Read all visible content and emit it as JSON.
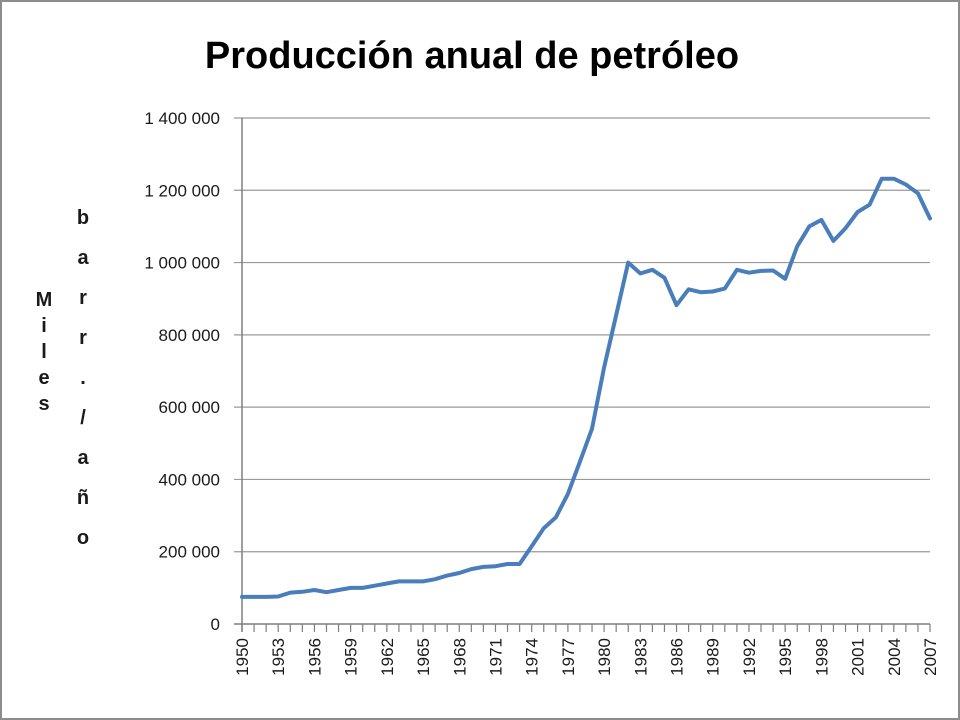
{
  "chart_data": {
    "type": "line",
    "title": "Producción anual de petróleo",
    "ylabel_lines": [
      "Miles",
      "barr./año"
    ],
    "ylim": [
      0,
      1400000
    ],
    "y_ticks": [
      0,
      200000,
      400000,
      600000,
      800000,
      1000000,
      1200000,
      1400000
    ],
    "y_tick_labels": [
      "0",
      "200 000",
      "400 000",
      "600 000",
      "800 000",
      "1 000 000",
      "1 200 000",
      "1 400 000"
    ],
    "x_tick_labels": [
      "1950",
      "1953",
      "1956",
      "1959",
      "1962",
      "1965",
      "1968",
      "1971",
      "1974",
      "1977",
      "1980",
      "1983",
      "1986",
      "1989",
      "1992",
      "1995",
      "1998",
      "2001",
      "2004",
      "2007"
    ],
    "grid": true,
    "legend": "none",
    "series_color": "#4a7ebb",
    "series": [
      {
        "x": [
          1950,
          1951,
          1952,
          1953,
          1954,
          1955,
          1956,
          1957,
          1958,
          1959,
          1960,
          1961,
          1962,
          1963,
          1964,
          1965,
          1966,
          1967,
          1968,
          1969,
          1970,
          1971,
          1972,
          1973,
          1974,
          1975,
          1976,
          1977,
          1978,
          1979,
          1980,
          1981,
          1982,
          1983,
          1984,
          1985,
          1986,
          1987,
          1988,
          1989,
          1990,
          1991,
          1992,
          1993,
          1994,
          1995,
          1996,
          1997,
          1998,
          1999,
          2000,
          2001,
          2002,
          2003,
          2004,
          2005,
          2006,
          2007
        ],
        "values": [
          75000,
          75000,
          75000,
          76000,
          87000,
          89000,
          94000,
          88000,
          94000,
          100000,
          100000,
          106000,
          112000,
          118000,
          118000,
          118000,
          124000,
          134000,
          141000,
          152000,
          158000,
          160000,
          166000,
          166000,
          215000,
          265000,
          295000,
          360000,
          450000,
          540000,
          710000,
          855000,
          1000000,
          970000,
          980000,
          958000,
          882000,
          926000,
          918000,
          920000,
          928000,
          980000,
          972000,
          977000,
          978000,
          955000,
          1045000,
          1100000,
          1118000,
          1060000,
          1095000,
          1140000,
          1160000,
          1232000,
          1232000,
          1216000,
          1192000,
          1122000
        ]
      }
    ]
  }
}
